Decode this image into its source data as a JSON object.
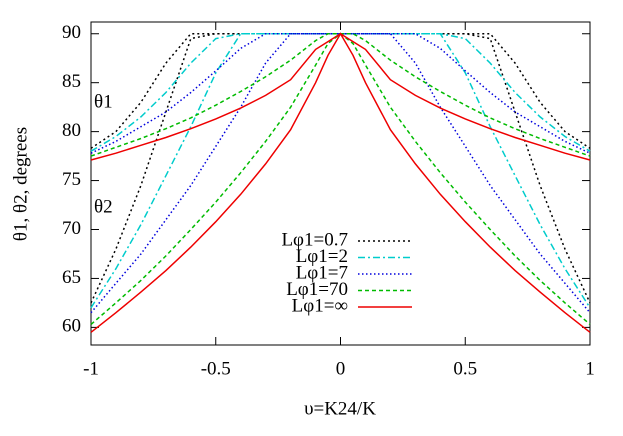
{
  "chart_data": {
    "type": "line",
    "xlabel": "υ=K24/K",
    "ylabel": "θ1, θ2, degrees",
    "annotations": [
      "θ1",
      "θ2"
    ],
    "annotation_color": "#0000cc",
    "x": [
      -1,
      -0.9,
      -0.8,
      -0.7,
      -0.6,
      -0.5,
      -0.4,
      -0.3,
      -0.2,
      -0.1,
      -0.05,
      0,
      0.05,
      0.1,
      0.2,
      0.3,
      0.4,
      0.5,
      0.6,
      0.7,
      0.8,
      0.9,
      1
    ],
    "xlim": [
      -1,
      1
    ],
    "xticks": [
      -1,
      -0.5,
      0,
      0.5,
      1
    ],
    "ylim": [
      58.2,
      91.2
    ],
    "yticks": [
      60,
      65,
      70,
      75,
      80,
      85,
      90
    ],
    "series": [
      {
        "name": "Lφ1=0.7",
        "color": "#000000",
        "dash": "2,3",
        "values": [
          78.3,
          80,
          83,
          87,
          90,
          90,
          90,
          90,
          90,
          90,
          90,
          90,
          90,
          90,
          90,
          90,
          90,
          90,
          90,
          87,
          83,
          80,
          78.3
        ],
        "theta2_values": [
          62.5,
          68,
          74.5,
          82,
          89.5,
          90,
          90,
          90,
          90,
          90,
          90,
          90,
          90,
          90,
          90,
          90,
          90,
          90,
          89.5,
          82,
          74.5,
          68,
          62.5
        ]
      },
      {
        "name": "Lφ1=2",
        "color": "#00cccc",
        "dash": "7,3,2,3",
        "values": [
          78,
          79.5,
          81.5,
          84,
          87,
          89.5,
          90,
          90,
          90,
          90,
          90,
          90,
          90,
          90,
          90,
          90,
          90,
          89.5,
          87,
          84,
          81.5,
          79.5,
          78
        ],
        "theta2_values": [
          62,
          66,
          70.5,
          75.5,
          80.5,
          86,
          90,
          90,
          90,
          90,
          90,
          90,
          90,
          90,
          90,
          90,
          90,
          86,
          80.5,
          75.5,
          70.5,
          66,
          62
        ]
      },
      {
        "name": "Lφ1=7",
        "color": "#0000dd",
        "dash": "1.5,2.5",
        "values": [
          77.8,
          79,
          80.5,
          82,
          84,
          86.2,
          88.5,
          90,
          90,
          90,
          90,
          90,
          90,
          90,
          90,
          90,
          88.5,
          86.2,
          84,
          82,
          80.5,
          79,
          77.8
        ],
        "theta2_values": [
          61.5,
          64.5,
          67.5,
          71,
          74.5,
          78.5,
          82.5,
          87,
          90,
          90,
          90,
          90,
          90,
          90,
          90,
          87,
          82.5,
          78.5,
          74.5,
          71,
          67.5,
          64.5,
          61.5
        ]
      },
      {
        "name": "Lφ1=70",
        "color": "#00bb00",
        "dash": "4,3",
        "values": [
          77.5,
          78.4,
          79.3,
          80.3,
          81.4,
          82.7,
          84.1,
          85.6,
          87.3,
          89.3,
          90,
          90,
          90,
          89.3,
          87.3,
          85.6,
          84.1,
          82.7,
          81.4,
          80.3,
          79.3,
          78.4,
          77.5
        ],
        "theta2_values": [
          60.3,
          62.5,
          64.8,
          67.3,
          70,
          72.8,
          75.8,
          79,
          82.5,
          86.8,
          89,
          90,
          89,
          86.8,
          82.5,
          79,
          75.8,
          72.8,
          70,
          67.3,
          64.8,
          62.5,
          60.3
        ]
      },
      {
        "name": "Lφ1=∞",
        "color": "#ee0000",
        "dash": "none",
        "values": [
          77.1,
          77.8,
          78.6,
          79.4,
          80.3,
          81.3,
          82.4,
          83.7,
          85.3,
          88.4,
          89.2,
          90,
          89.2,
          88.4,
          85.3,
          83.7,
          82.4,
          81.3,
          80.3,
          79.4,
          78.6,
          77.8,
          77.1
        ],
        "theta2_values": [
          59.5,
          61.5,
          63.6,
          65.8,
          68.2,
          70.8,
          73.6,
          76.7,
          80.2,
          85,
          87.8,
          90,
          87.8,
          85,
          80.2,
          76.7,
          73.6,
          70.8,
          68.2,
          65.8,
          63.6,
          61.5,
          59.5
        ]
      }
    ]
  }
}
